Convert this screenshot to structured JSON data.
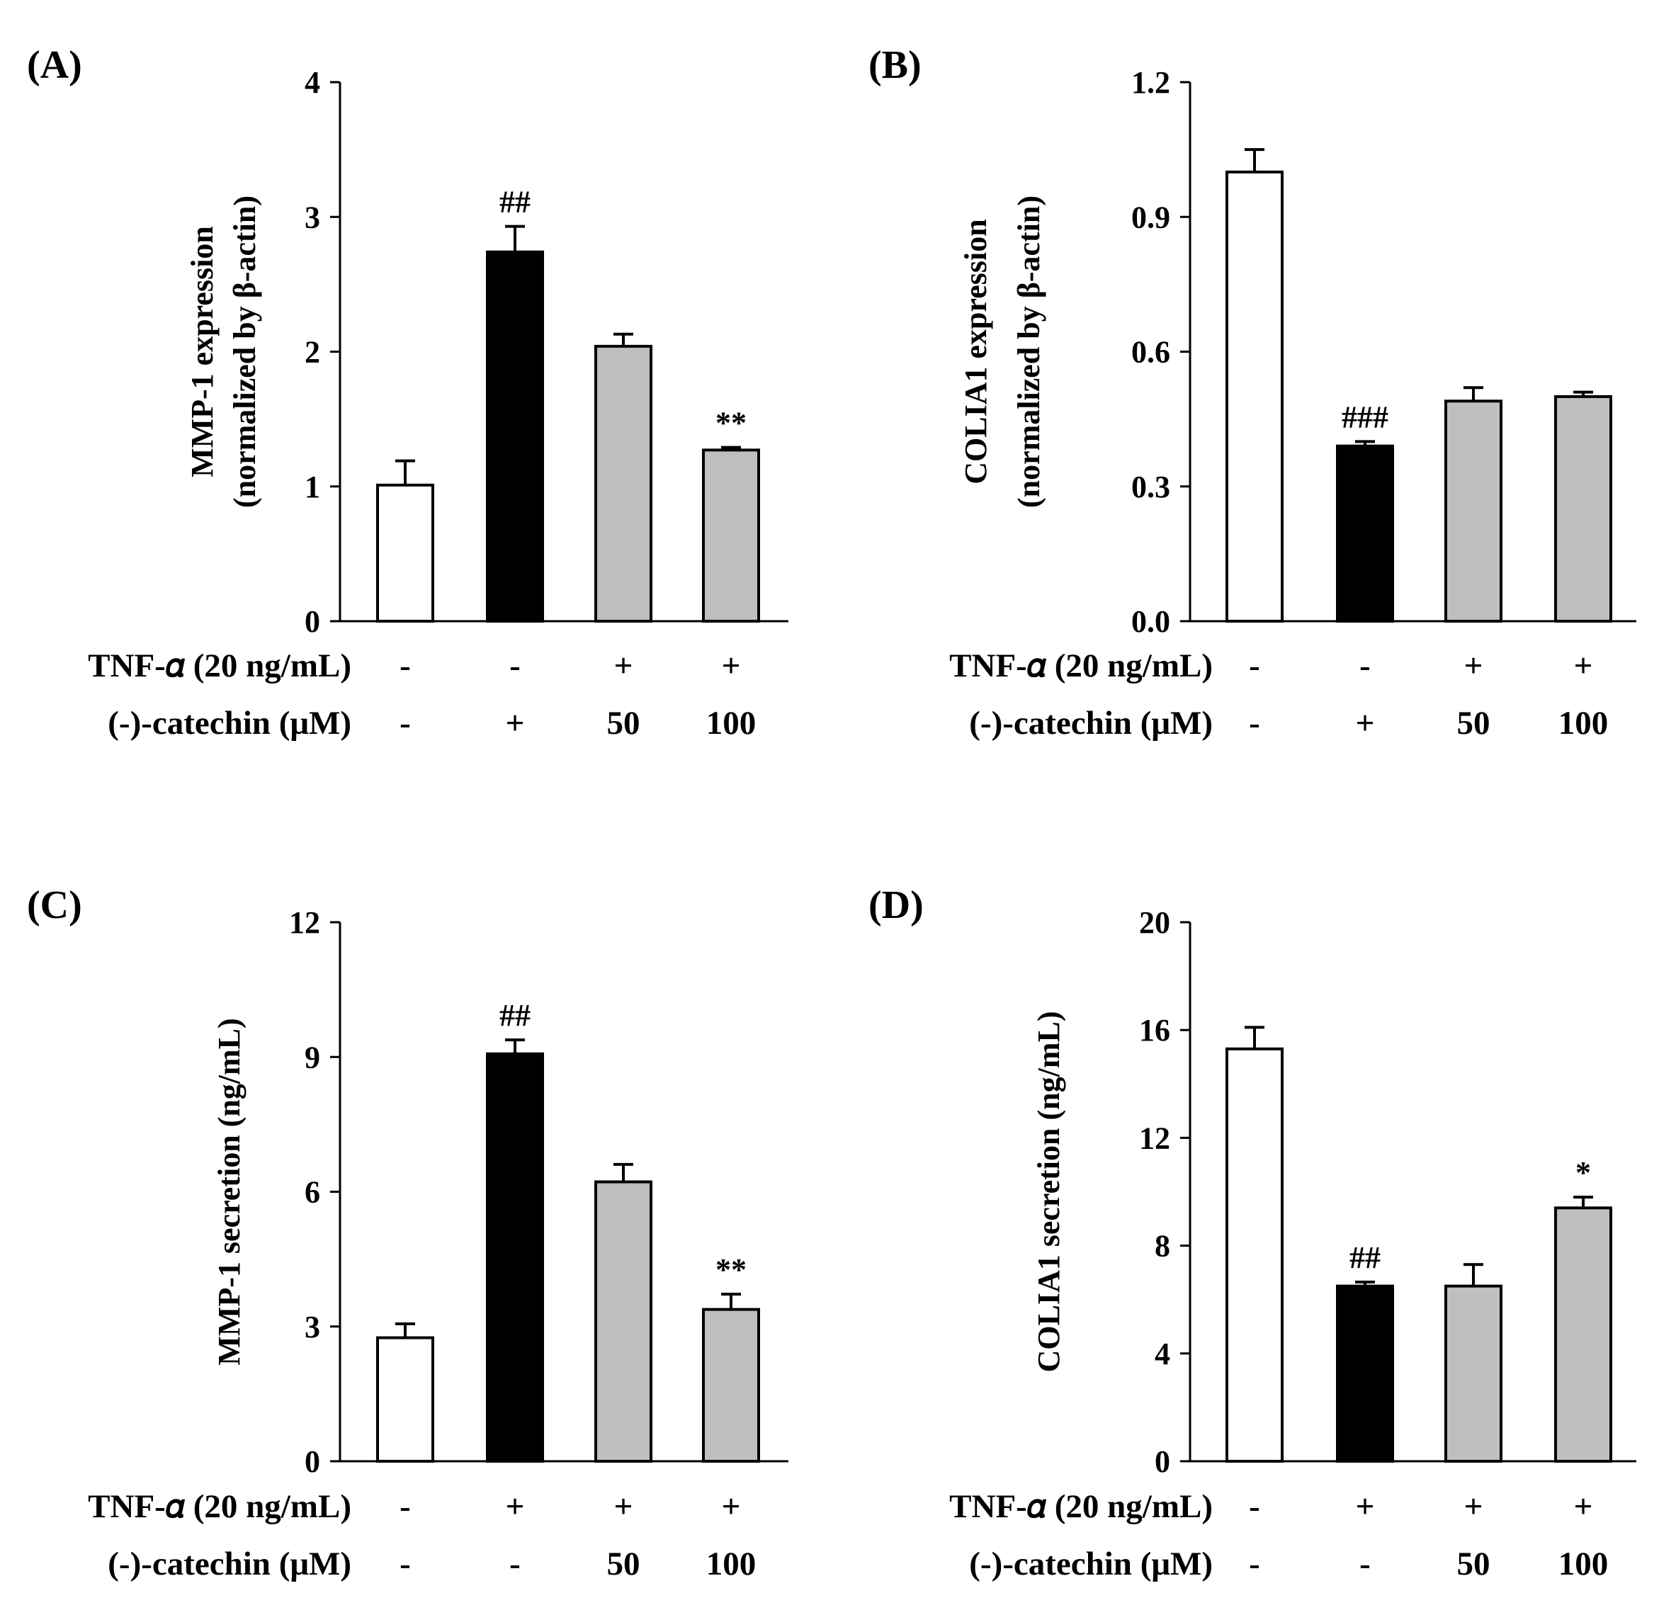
{
  "chart_data": [
    {
      "type": "bar",
      "panel": "(A)",
      "ylabel_lines": [
        "MMP-1 expression",
        "(normalized by β-actin)"
      ],
      "ylim": [
        0,
        4
      ],
      "yticks": [
        "0",
        "1",
        "2",
        "3",
        "4"
      ],
      "values": [
        1.01,
        2.74,
        2.04,
        1.27
      ],
      "errors": [
        0.18,
        0.19,
        0.09,
        0.02
      ],
      "fills": [
        "#ffffff",
        "#000000",
        "#bfbfbf",
        "#bfbfbf"
      ],
      "significance": [
        "",
        "##",
        "",
        "**"
      ],
      "conditions": [
        {
          "label": "TNF-𝛼 (20 ng/mL)",
          "values": [
            "-",
            "-",
            "+",
            "+"
          ]
        },
        {
          "label": "(-)-catechin (μM)",
          "values": [
            "-",
            "+",
            "50",
            "100"
          ]
        }
      ]
    },
    {
      "type": "bar",
      "panel": "(B)",
      "ylabel_lines": [
        "COLIA1  expression",
        "(normalized by β-actin)"
      ],
      "ylim": [
        0,
        1.2
      ],
      "yticks": [
        "0.0",
        "0.3",
        "0.6",
        "0.9",
        "1.2"
      ],
      "values": [
        1.0,
        0.39,
        0.49,
        0.5
      ],
      "errors": [
        0.05,
        0.01,
        0.03,
        0.01
      ],
      "fills": [
        "#ffffff",
        "#000000",
        "#bfbfbf",
        "#bfbfbf"
      ],
      "significance": [
        "",
        "###",
        "",
        ""
      ],
      "conditions": [
        {
          "label": "TNF-𝛼 (20 ng/mL)",
          "values": [
            "-",
            "-",
            "+",
            "+"
          ]
        },
        {
          "label": "(-)-catechin (μM)",
          "values": [
            "-",
            "+",
            "50",
            "100"
          ]
        }
      ]
    },
    {
      "type": "bar",
      "panel": "(C)",
      "ylabel_lines": [
        "MMP-1 secretion (ng/mL)"
      ],
      "ylim": [
        0,
        12
      ],
      "yticks": [
        "0",
        "3",
        "6",
        "9",
        "12"
      ],
      "values": [
        2.75,
        9.07,
        6.22,
        3.38
      ],
      "errors": [
        0.31,
        0.31,
        0.39,
        0.34
      ],
      "fills": [
        "#ffffff",
        "#000000",
        "#bfbfbf",
        "#bfbfbf"
      ],
      "significance": [
        "",
        "##",
        "",
        "**"
      ],
      "conditions": [
        {
          "label": "TNF-𝛼 (20 ng/mL)",
          "values": [
            "-",
            "+",
            "+",
            "+"
          ]
        },
        {
          "label": "(-)-catechin (μM)",
          "values": [
            "-",
            "-",
            "50",
            "100"
          ]
        }
      ]
    },
    {
      "type": "bar",
      "panel": "(D)",
      "ylabel_lines": [
        "COLIA1 secretion (ng/mL)"
      ],
      "ylim": [
        0,
        20
      ],
      "yticks": [
        "0",
        "4",
        "8",
        "12",
        "16",
        "20"
      ],
      "values": [
        15.3,
        6.5,
        6.5,
        9.4
      ],
      "errors": [
        0.8,
        0.15,
        0.8,
        0.4
      ],
      "fills": [
        "#ffffff",
        "#000000",
        "#bfbfbf",
        "#bfbfbf"
      ],
      "significance": [
        "",
        "##",
        "",
        "*"
      ],
      "conditions": [
        {
          "label": "TNF-𝛼 (20 ng/mL)",
          "values": [
            "-",
            "+",
            "+",
            "+"
          ]
        },
        {
          "label": "(-)-catechin (μM)",
          "values": [
            "-",
            "-",
            "50",
            "100"
          ]
        }
      ]
    }
  ]
}
